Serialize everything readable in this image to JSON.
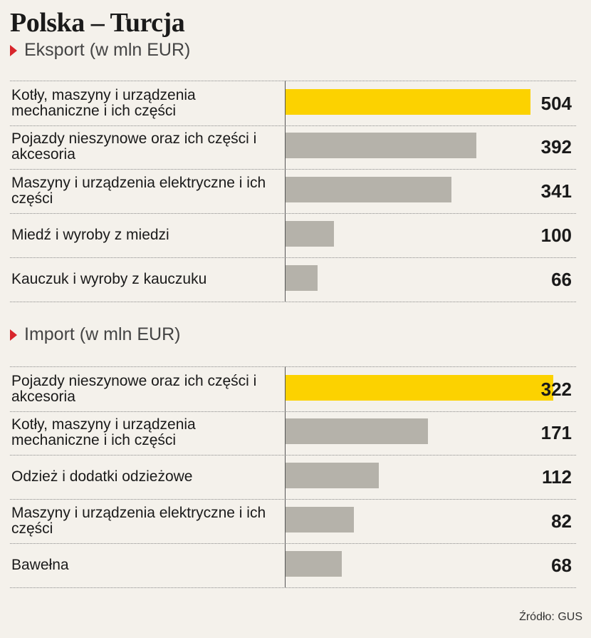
{
  "title": "Polska – Turcja",
  "source": "Źródło: GUS",
  "colors": {
    "highlight": "#fcd200",
    "bar": "#b5b2aa",
    "marker": "#d8262c"
  },
  "chart_data": [
    {
      "type": "bar",
      "orientation": "horizontal",
      "title": "Eksport (w mln EUR)",
      "categories": [
        "Kotły, maszyny i urządzenia mechaniczne i ich części",
        "Pojazdy nieszynowe oraz ich części i akcesoria",
        "Maszyny i urządzenia elektryczne i ich części",
        "Miedź i wyroby z miedzi",
        "Kauczuk i wyroby z kauczuku"
      ],
      "values": [
        504,
        392,
        341,
        100,
        66
      ],
      "highlight_index": 0,
      "xlim": [
        0,
        504
      ]
    },
    {
      "type": "bar",
      "orientation": "horizontal",
      "title": "Import (w mln EUR)",
      "categories": [
        "Pojazdy nieszynowe oraz ich części i akcesoria",
        "Kotły, maszyny i urządzenia mechaniczne i ich części",
        "Odzież i dodatki odzieżowe",
        "Maszyny i urządzenia elektryczne i ich części",
        "Bawełna"
      ],
      "values": [
        322,
        171,
        112,
        82,
        68
      ],
      "highlight_index": 0,
      "xlim": [
        0,
        322
      ]
    }
  ]
}
